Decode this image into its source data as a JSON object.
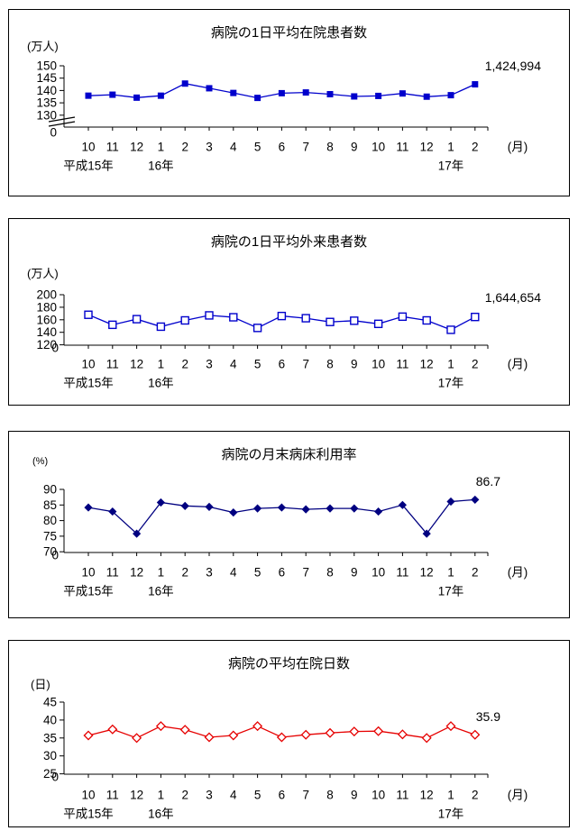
{
  "chart_data": [
    {
      "type": "line",
      "title": "病院の1日平均在院患者数",
      "ylabel": "(万人)",
      "xlabel_suffix": "(月)",
      "x": [
        "10",
        "11",
        "12",
        "1",
        "2",
        "3",
        "4",
        "5",
        "6",
        "7",
        "8",
        "9",
        "10",
        "11",
        "12",
        "1",
        "2"
      ],
      "year_labels": [
        {
          "label": "平成15年",
          "month_index": 0
        },
        {
          "label": "16年",
          "month_index": 3
        },
        {
          "label": "17年",
          "month_index": 15
        }
      ],
      "values": [
        137.9,
        138.3,
        137.1,
        137.9,
        142.8,
        140.9,
        139.0,
        137.0,
        138.9,
        139.2,
        138.5,
        137.6,
        137.8,
        138.8,
        137.5,
        138.1,
        142.5
      ],
      "annotation": "1,424,994",
      "y_ticks": [
        150,
        145,
        140,
        135,
        130
      ],
      "zero_label": "0",
      "y_axis_break": true,
      "grid": false,
      "line_color": "#0000cc",
      "marker": "filled-square",
      "marker_color": "#0000cc"
    },
    {
      "type": "line",
      "title": "病院の1日平均外来患者数",
      "ylabel": "(万人)",
      "xlabel_suffix": "(月)",
      "x": [
        "10",
        "11",
        "12",
        "1",
        "2",
        "3",
        "4",
        "5",
        "6",
        "7",
        "8",
        "9",
        "10",
        "11",
        "12",
        "1",
        "2"
      ],
      "year_labels": [
        {
          "label": "平成15年",
          "month_index": 0
        },
        {
          "label": "16年",
          "month_index": 3
        },
        {
          "label": "17年",
          "month_index": 15
        }
      ],
      "values": [
        168,
        152,
        161,
        149,
        159,
        167,
        164,
        147,
        166,
        162.5,
        156.5,
        158.5,
        153.5,
        165,
        159,
        144,
        164.5
      ],
      "annotation": "1,644,654",
      "y_ticks": [
        200,
        180,
        160,
        140,
        120
      ],
      "zero_label": "0",
      "y_axis_break": false,
      "grid": false,
      "line_color": "#0000cc",
      "marker": "open-square",
      "marker_color": "#0000cc"
    },
    {
      "type": "line",
      "title": "病院の月末病床利用率",
      "ylabel": "(%)",
      "xlabel_suffix": "(月)",
      "x": [
        "10",
        "11",
        "12",
        "1",
        "2",
        "3",
        "4",
        "5",
        "6",
        "7",
        "8",
        "9",
        "10",
        "11",
        "12",
        "1",
        "2"
      ],
      "year_labels": [
        {
          "label": "平成15年",
          "month_index": 0
        },
        {
          "label": "16年",
          "month_index": 3
        },
        {
          "label": "17年",
          "month_index": 15
        }
      ],
      "values": [
        84.2,
        82.9,
        75.8,
        85.8,
        84.7,
        84.4,
        82.6,
        83.9,
        84.2,
        83.6,
        83.9,
        83.9,
        82.9,
        85.0,
        75.8,
        86.1,
        86.7
      ],
      "annotation": "86.7",
      "y_ticks": [
        90,
        85,
        80,
        75,
        70
      ],
      "zero_label": "0",
      "y_axis_break": false,
      "grid": false,
      "line_color": "#000080",
      "marker": "filled-diamond",
      "marker_color": "#000080"
    },
    {
      "type": "line",
      "title": "病院の平均在院日数",
      "ylabel": "(日)",
      "xlabel_suffix": "(月)",
      "x": [
        "10",
        "11",
        "12",
        "1",
        "2",
        "3",
        "4",
        "5",
        "6",
        "7",
        "8",
        "9",
        "10",
        "11",
        "12",
        "1",
        "2"
      ],
      "year_labels": [
        {
          "label": "平成15年",
          "month_index": 0
        },
        {
          "label": "16年",
          "month_index": 3
        },
        {
          "label": "17年",
          "month_index": 15
        }
      ],
      "values": [
        35.7,
        37.4,
        35.0,
        38.3,
        37.3,
        35.2,
        35.7,
        38.3,
        35.2,
        35.9,
        36.4,
        36.8,
        36.9,
        36.0,
        35.0,
        38.3,
        35.9
      ],
      "annotation": "35.9",
      "y_ticks": [
        45,
        40,
        35,
        30,
        25
      ],
      "zero_label": "0",
      "y_axis_break": false,
      "grid": false,
      "line_color": "#e60000",
      "marker": "open-diamond",
      "marker_color": "#e60000"
    }
  ]
}
